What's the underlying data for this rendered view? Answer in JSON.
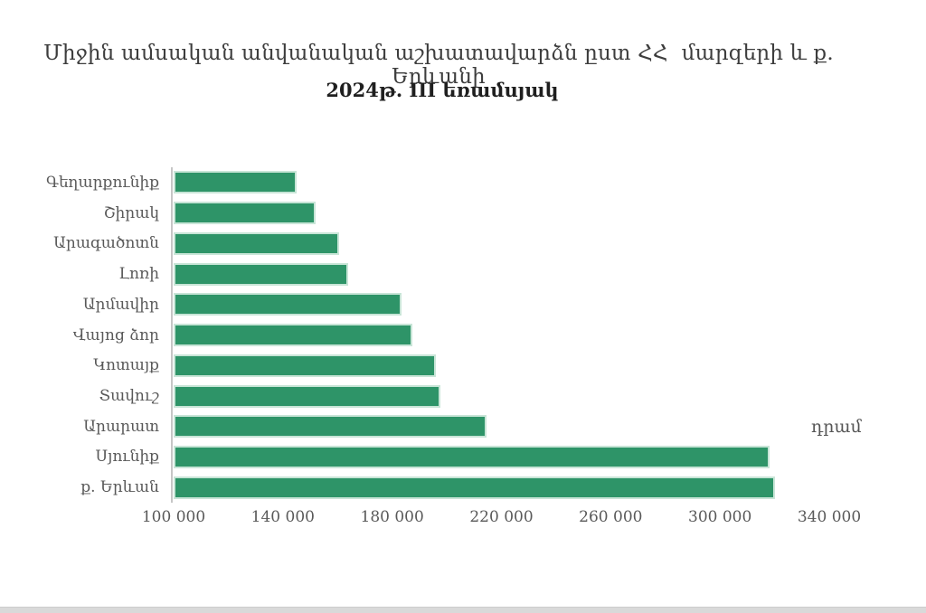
{
  "chart_data": {
    "type": "bar",
    "orientation": "horizontal",
    "title": "Միջին ամսական անվանական աշխատավարձն ըստ ՀՀ  մարզերի և ք. Երևանի",
    "subtitle": "2024թ. III եռամսյակ",
    "unit_label": "դրամ",
    "categories": [
      "Գեղարքունիք",
      "Շիրակ",
      "Արագածոտն",
      "Լոռի",
      "Արմավիր",
      "Վայոց ձոր",
      "Կոտայք",
      "Տավուշ",
      "Արարատ",
      "Սյունիք",
      "ք. Երևան"
    ],
    "values": [
      145000,
      152000,
      160500,
      164000,
      183500,
      187500,
      196000,
      197500,
      214500,
      318000,
      320000
    ],
    "x_ticks": [
      "100 000",
      "140 000",
      "180 000",
      "220 000",
      "260 000",
      "300 000",
      "340 000"
    ],
    "x_tick_values": [
      100000,
      140000,
      180000,
      220000,
      260000,
      300000,
      340000
    ],
    "xlim": [
      100000,
      340000
    ],
    "xlabel": "",
    "ylabel": "",
    "grid": false,
    "legend": false,
    "colors": {
      "bar_fill": "#2e9468",
      "bar_edge": "#c8e5d7",
      "axis_line": "#c6c6c6",
      "tick_label": "#595959",
      "category_label": "#595959",
      "title_text": "#3d3d3d",
      "subtitle_text": "#1f1f1f"
    }
  }
}
